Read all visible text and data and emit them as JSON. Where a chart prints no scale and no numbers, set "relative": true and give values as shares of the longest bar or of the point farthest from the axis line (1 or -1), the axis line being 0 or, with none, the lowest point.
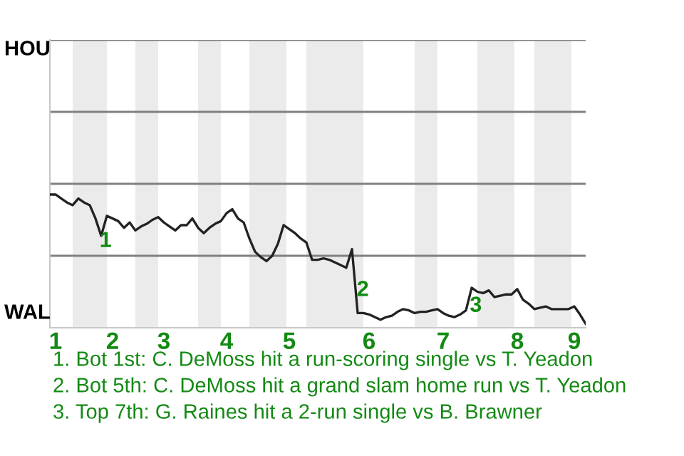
{
  "chart_data": {
    "type": "line",
    "relative": true,
    "categories": [
      null,
      "1",
      null,
      null,
      null,
      null,
      null,
      null,
      null,
      null,
      null,
      "2",
      null,
      null,
      null,
      null,
      null,
      null,
      null,
      null,
      "3",
      null,
      null,
      null,
      null,
      null,
      null,
      null,
      null,
      null,
      null,
      "4",
      null,
      null,
      null,
      null,
      null,
      null,
      null,
      null,
      null,
      null,
      "5",
      null,
      null,
      null,
      null,
      null,
      null,
      null,
      null,
      null,
      null,
      null,
      null,
      null,
      "6",
      null,
      null,
      null,
      null,
      null,
      null,
      null,
      null,
      null,
      null,
      null,
      null,
      "7",
      null,
      null,
      null,
      null,
      null,
      null,
      null,
      null,
      null,
      null,
      null,
      null,
      "8",
      null,
      null,
      null,
      null,
      null,
      null,
      null,
      null,
      null,
      "9",
      null,
      null
    ],
    "ylim": [
      0,
      2.16
    ],
    "grid": "y",
    "series": [
      {
        "color": "#222222",
        "values": [
          1,
          1,
          0.97,
          0.94,
          0.92,
          0.97,
          0.94,
          0.92,
          0.82,
          0.69,
          0.84,
          0.82,
          0.8,
          0.75,
          0.79,
          0.73,
          0.76,
          0.78,
          0.81,
          0.83,
          0.79,
          0.76,
          0.73,
          0.77,
          0.77,
          0.82,
          0.75,
          0.71,
          0.75,
          0.78,
          0.8,
          0.86,
          0.89,
          0.82,
          0.79,
          0.67,
          0.57,
          0.53,
          0.5,
          0.54,
          0.63,
          0.77,
          0.74,
          0.71,
          0.67,
          0.64,
          0.51,
          0.51,
          0.52,
          0.51,
          0.49,
          0.47,
          0.45,
          0.59,
          0.11,
          0.11,
          0.1,
          0.08,
          0.06,
          0.08,
          0.09,
          0.12,
          0.14,
          0.13,
          0.11,
          0.12,
          0.12,
          0.13,
          0.14,
          0.11,
          0.09,
          0.08,
          0.1,
          0.13,
          0.3,
          0.27,
          0.26,
          0.28,
          0.23,
          0.24,
          0.25,
          0.25,
          0.29,
          0.21,
          0.18,
          0.14,
          0.15,
          0.16,
          0.14,
          0.14,
          0.14,
          0.14,
          0.16,
          0.1,
          0.03
        ]
      }
    ],
    "annotations": [
      "HOU",
      "WAL",
      "1",
      "2",
      "3",
      "1. Bot 1st: C. DeMoss hit a run-scoring single vs T. Yeadon",
      "2. Bot 5th: C. DeMoss hit a grand slam home run vs T. Yeadon",
      "3. Top 7th: G. Raines hit a 2-run single vs B. Brawner"
    ]
  }
}
